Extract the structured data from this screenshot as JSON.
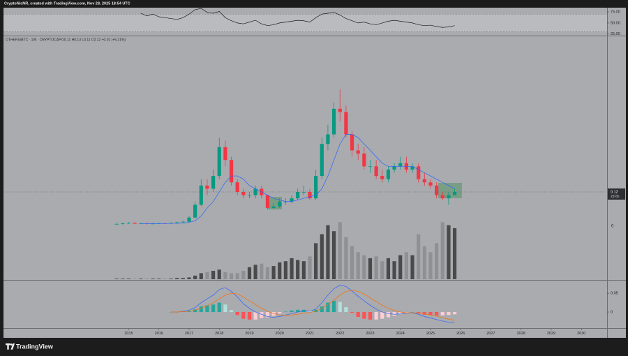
{
  "header": "CryptoNicNR, created with TradingView.com, Nov 28, 2025 18:54 UTC",
  "brand": "TradingView",
  "chart_data": [
    {
      "type": "candlestick",
      "title": "OTHERS/BTC · 1W · CRYPTOCAP",
      "ohlc_legend": "O0.11 H0.13 L0.11 C0.12 +0.01 (+5.21%)",
      "x": [
        2014.6,
        2014.8,
        2015,
        2015.2,
        2015.4,
        2015.6,
        2015.8,
        2016,
        2016.2,
        2016.4,
        2016.6,
        2016.8,
        2017,
        2017.2,
        2017.4,
        2017.6,
        2017.8,
        2018,
        2018.2,
        2018.4,
        2018.6,
        2018.8,
        2019,
        2019.2,
        2019.4,
        2019.6,
        2019.8,
        2020,
        2020.2,
        2020.4,
        2020.6,
        2020.8,
        2021,
        2021.2,
        2021.4,
        2021.6,
        2021.8,
        2022,
        2022.2,
        2022.4,
        2022.6,
        2022.8,
        2023,
        2023.2,
        2023.4,
        2023.6,
        2023.8,
        2024,
        2024.2,
        2024.4,
        2024.6,
        2024.8,
        2025,
        2025.2,
        2025.4,
        2025.6,
        2025.8
      ],
      "open": [
        0.019,
        0.02,
        0.022,
        0.024,
        0.021,
        0.022,
        0.02,
        0.021,
        0.022,
        0.021,
        0.023,
        0.025,
        0.027,
        0.04,
        0.08,
        0.14,
        0.13,
        0.17,
        0.26,
        0.22,
        0.15,
        0.12,
        0.11,
        0.11,
        0.13,
        0.11,
        0.07,
        0.075,
        0.09,
        0.09,
        0.1,
        0.12,
        0.12,
        0.1,
        0.17,
        0.27,
        0.3,
        0.38,
        0.37,
        0.3,
        0.25,
        0.24,
        0.2,
        0.2,
        0.17,
        0.16,
        0.19,
        0.2,
        0.21,
        0.19,
        0.2,
        0.16,
        0.15,
        0.14,
        0.11,
        0.1,
        0.11
      ],
      "high": [
        0.023,
        0.024,
        0.026,
        0.025,
        0.024,
        0.023,
        0.023,
        0.024,
        0.023,
        0.025,
        0.027,
        0.03,
        0.045,
        0.09,
        0.16,
        0.16,
        0.19,
        0.29,
        0.28,
        0.23,
        0.16,
        0.13,
        0.12,
        0.14,
        0.14,
        0.11,
        0.085,
        0.1,
        0.1,
        0.11,
        0.13,
        0.14,
        0.13,
        0.19,
        0.29,
        0.33,
        0.4,
        0.44,
        0.39,
        0.31,
        0.27,
        0.26,
        0.22,
        0.22,
        0.19,
        0.2,
        0.21,
        0.23,
        0.23,
        0.21,
        0.21,
        0.18,
        0.16,
        0.15,
        0.12,
        0.12,
        0.13
      ],
      "low": [
        0.017,
        0.018,
        0.02,
        0.02,
        0.019,
        0.018,
        0.019,
        0.02,
        0.02,
        0.02,
        0.022,
        0.024,
        0.026,
        0.038,
        0.075,
        0.11,
        0.12,
        0.16,
        0.2,
        0.14,
        0.11,
        0.1,
        0.1,
        0.1,
        0.1,
        0.065,
        0.065,
        0.07,
        0.08,
        0.085,
        0.095,
        0.11,
        0.095,
        0.095,
        0.16,
        0.25,
        0.29,
        0.34,
        0.29,
        0.23,
        0.22,
        0.19,
        0.18,
        0.16,
        0.15,
        0.15,
        0.18,
        0.19,
        0.18,
        0.18,
        0.15,
        0.14,
        0.13,
        0.1,
        0.095,
        0.08,
        0.11
      ],
      "close": [
        0.02,
        0.022,
        0.024,
        0.021,
        0.022,
        0.02,
        0.021,
        0.022,
        0.021,
        0.023,
        0.025,
        0.027,
        0.04,
        0.08,
        0.14,
        0.13,
        0.17,
        0.26,
        0.22,
        0.15,
        0.12,
        0.11,
        0.11,
        0.13,
        0.11,
        0.07,
        0.075,
        0.09,
        0.09,
        0.1,
        0.12,
        0.12,
        0.1,
        0.17,
        0.27,
        0.3,
        0.38,
        0.37,
        0.3,
        0.25,
        0.24,
        0.2,
        0.2,
        0.17,
        0.16,
        0.19,
        0.2,
        0.21,
        0.19,
        0.2,
        0.16,
        0.15,
        0.14,
        0.11,
        0.1,
        0.11,
        0.12
      ],
      "up_color": "#089981",
      "down_color": "#f23645",
      "ma": {
        "color": "#2962ff",
        "values": [
          null,
          null,
          null,
          null,
          0.021,
          0.021,
          0.021,
          0.021,
          0.021,
          0.022,
          0.022,
          0.023,
          0.025,
          0.03,
          0.045,
          0.07,
          0.09,
          0.12,
          0.15,
          0.17,
          0.17,
          0.16,
          0.14,
          0.13,
          0.12,
          0.11,
          0.1,
          0.095,
          0.09,
          0.09,
          0.095,
          0.1,
          0.105,
          0.11,
          0.13,
          0.17,
          0.22,
          0.27,
          0.3,
          0.3,
          0.29,
          0.27,
          0.25,
          0.23,
          0.21,
          0.2,
          0.2,
          0.2,
          0.2,
          0.2,
          0.19,
          0.18,
          0.17,
          0.16,
          0.15,
          0.14,
          0.13
        ]
      },
      "last_price": 0.12,
      "countdown": "2d 6h",
      "xlim": [
        2010.85,
        2030.85
      ],
      "ylim": [
        0,
        0.6
      ],
      "xticks": [
        2015,
        2016,
        2017,
        2018,
        2019,
        2020,
        2021,
        2022,
        2023,
        2024,
        2025,
        2026,
        2027,
        2028,
        2029,
        2030
      ]
    },
    {
      "type": "bar",
      "scale_label": "0",
      "x": [
        2014.6,
        2014.8,
        2015,
        2015.2,
        2015.4,
        2015.6,
        2015.8,
        2016,
        2016.2,
        2016.4,
        2016.6,
        2016.8,
        2017,
        2017.2,
        2017.4,
        2017.6,
        2017.8,
        2018,
        2018.2,
        2018.4,
        2018.6,
        2018.8,
        2019,
        2019.2,
        2019.4,
        2019.6,
        2019.8,
        2020,
        2020.2,
        2020.4,
        2020.6,
        2020.8,
        2021,
        2021.2,
        2021.4,
        2021.6,
        2021.8,
        2022,
        2022.2,
        2022.4,
        2022.6,
        2022.8,
        2023,
        2023.2,
        2023.4,
        2023.6,
        2023.8,
        2024,
        2024.2,
        2024.4,
        2024.6,
        2024.8,
        2025,
        2025.2,
        2025.4,
        2025.6,
        2025.8
      ],
      "values": [
        1,
        1,
        1,
        1,
        1,
        1,
        1,
        1,
        1,
        1,
        2,
        2,
        3,
        6,
        10,
        12,
        14,
        16,
        12,
        10,
        10,
        14,
        20,
        24,
        26,
        20,
        22,
        28,
        30,
        35,
        32,
        30,
        38,
        60,
        75,
        90,
        80,
        95,
        70,
        55,
        45,
        40,
        35,
        38,
        30,
        35,
        30,
        40,
        45,
        40,
        75,
        55,
        45,
        60,
        95,
        90,
        85
      ],
      "up_color": "#4a4a4a",
      "down_color": "#8e9094",
      "xlim": [
        2010.85,
        2030.85
      ],
      "ylim": [
        0,
        100
      ]
    },
    {
      "type": "line",
      "x": [
        2014.6,
        2014.8,
        2015,
        2015.2,
        2015.4,
        2015.6,
        2015.8,
        2016,
        2016.2,
        2016.4,
        2016.6,
        2016.8,
        2017,
        2017.2,
        2017.4,
        2017.6,
        2017.8,
        2018,
        2018.2,
        2018.4,
        2018.6,
        2018.8,
        2019,
        2019.2,
        2019.4,
        2019.6,
        2019.8,
        2020,
        2020.2,
        2020.4,
        2020.6,
        2020.8,
        2021,
        2021.2,
        2021.4,
        2021.6,
        2021.8,
        2022,
        2022.2,
        2022.4,
        2022.6,
        2022.8,
        2023,
        2023.2,
        2023.4,
        2023.6,
        2023.8,
        2024,
        2024.2,
        2024.4,
        2024.6,
        2024.8,
        2025,
        2025.2,
        2025.4,
        2025.6,
        2025.8
      ],
      "values": [
        null,
        null,
        null,
        null,
        72,
        66,
        70,
        64,
        62,
        60,
        58,
        62,
        70,
        80,
        83,
        74,
        72,
        76,
        62,
        55,
        50,
        48,
        52,
        56,
        48,
        44,
        46,
        50,
        52,
        54,
        56,
        55,
        52,
        62,
        70,
        72,
        74,
        68,
        60,
        55,
        50,
        52,
        48,
        46,
        50,
        54,
        56,
        54,
        52,
        50,
        46,
        44,
        45,
        42,
        40,
        41,
        44
      ],
      "color": "#1a1a1a",
      "band": [
        30,
        70
      ],
      "xlim": [
        2010.85,
        2030.85
      ],
      "ylim": [
        23,
        83
      ],
      "yticks": [
        {
          "value": 75,
          "label": "75.00"
        },
        {
          "value": 50,
          "label": "50.00"
        },
        {
          "value": 25,
          "label": "25.00"
        }
      ]
    },
    {
      "type": "macd",
      "x": [
        2014.6,
        2014.8,
        2015,
        2015.2,
        2015.4,
        2015.6,
        2015.8,
        2016,
        2016.2,
        2016.4,
        2016.6,
        2016.8,
        2017,
        2017.2,
        2017.4,
        2017.6,
        2017.8,
        2018,
        2018.2,
        2018.4,
        2018.6,
        2018.8,
        2019,
        2019.2,
        2019.4,
        2019.6,
        2019.8,
        2020,
        2020.2,
        2020.4,
        2020.6,
        2020.8,
        2021,
        2021.2,
        2021.4,
        2021.6,
        2021.8,
        2022,
        2022.2,
        2022.4,
        2022.6,
        2022.8,
        2023,
        2023.2,
        2023.4,
        2023.6,
        2023.8,
        2024,
        2024.2,
        2024.4,
        2024.6,
        2024.8,
        2025,
        2025.2,
        2025.4,
        2025.6,
        2025.8
      ],
      "series": [
        {
          "color": "#2962ff",
          "values": [
            null,
            null,
            null,
            null,
            null,
            null,
            null,
            null,
            null,
            0,
            0,
            0.002,
            0.005,
            0.012,
            0.025,
            0.035,
            0.045,
            0.06,
            0.065,
            0.055,
            0.04,
            0.022,
            0.01,
            0,
            -0.006,
            -0.012,
            -0.014,
            -0.012,
            -0.008,
            -0.004,
            0,
            0.003,
            0.002,
            0.008,
            0.025,
            0.045,
            0.062,
            0.072,
            0.068,
            0.056,
            0.042,
            0.03,
            0.018,
            0.008,
            0,
            -0.004,
            -0.006,
            -0.005,
            -0.003,
            -0.002,
            -0.006,
            -0.012,
            -0.016,
            -0.02,
            -0.024,
            -0.027,
            -0.028
          ]
        },
        {
          "color": "#ff6d00",
          "values": [
            null,
            null,
            null,
            null,
            null,
            null,
            null,
            null,
            null,
            0,
            0,
            0.001,
            0.002,
            0.005,
            0.01,
            0.017,
            0.025,
            0.035,
            0.045,
            0.05,
            0.048,
            0.04,
            0.03,
            0.02,
            0.01,
            0.002,
            -0.004,
            -0.008,
            -0.009,
            -0.008,
            -0.006,
            -0.003,
            -0.001,
            0.002,
            0.01,
            0.02,
            0.032,
            0.045,
            0.055,
            0.058,
            0.055,
            0.048,
            0.038,
            0.028,
            0.018,
            0.01,
            0.004,
            0,
            -0.002,
            -0.002,
            -0.003,
            -0.005,
            -0.008,
            -0.011,
            -0.015,
            -0.019,
            -0.022
          ]
        }
      ],
      "histogram": [
        null,
        null,
        null,
        null,
        null,
        null,
        null,
        null,
        null,
        0,
        0,
        0.001,
        0.003,
        0.007,
        0.015,
        0.018,
        0.02,
        0.025,
        0.02,
        0.005,
        -0.008,
        -0.018,
        -0.02,
        -0.02,
        -0.016,
        -0.014,
        -0.01,
        -0.004,
        0.001,
        0.004,
        0.006,
        0.006,
        0.003,
        0.006,
        0.015,
        0.025,
        0.03,
        0.027,
        0.013,
        -0.002,
        -0.013,
        -0.018,
        -0.02,
        -0.02,
        -0.018,
        -0.014,
        -0.01,
        -0.005,
        -0.001,
        0,
        -0.003,
        -0.007,
        -0.008,
        -0.009,
        -0.009,
        -0.008,
        -0.006
      ],
      "hist_colors": {
        "pos_rise": "#26a69a",
        "pos_fall": "#b2dfdb",
        "neg_fall": "#ff5252",
        "neg_rise": "#ffcdd2"
      },
      "xlim": [
        2010.85,
        2030.85
      ],
      "ylim": [
        -0.039,
        0.08
      ],
      "yticks": [
        0,
        0.05
      ]
    }
  ]
}
